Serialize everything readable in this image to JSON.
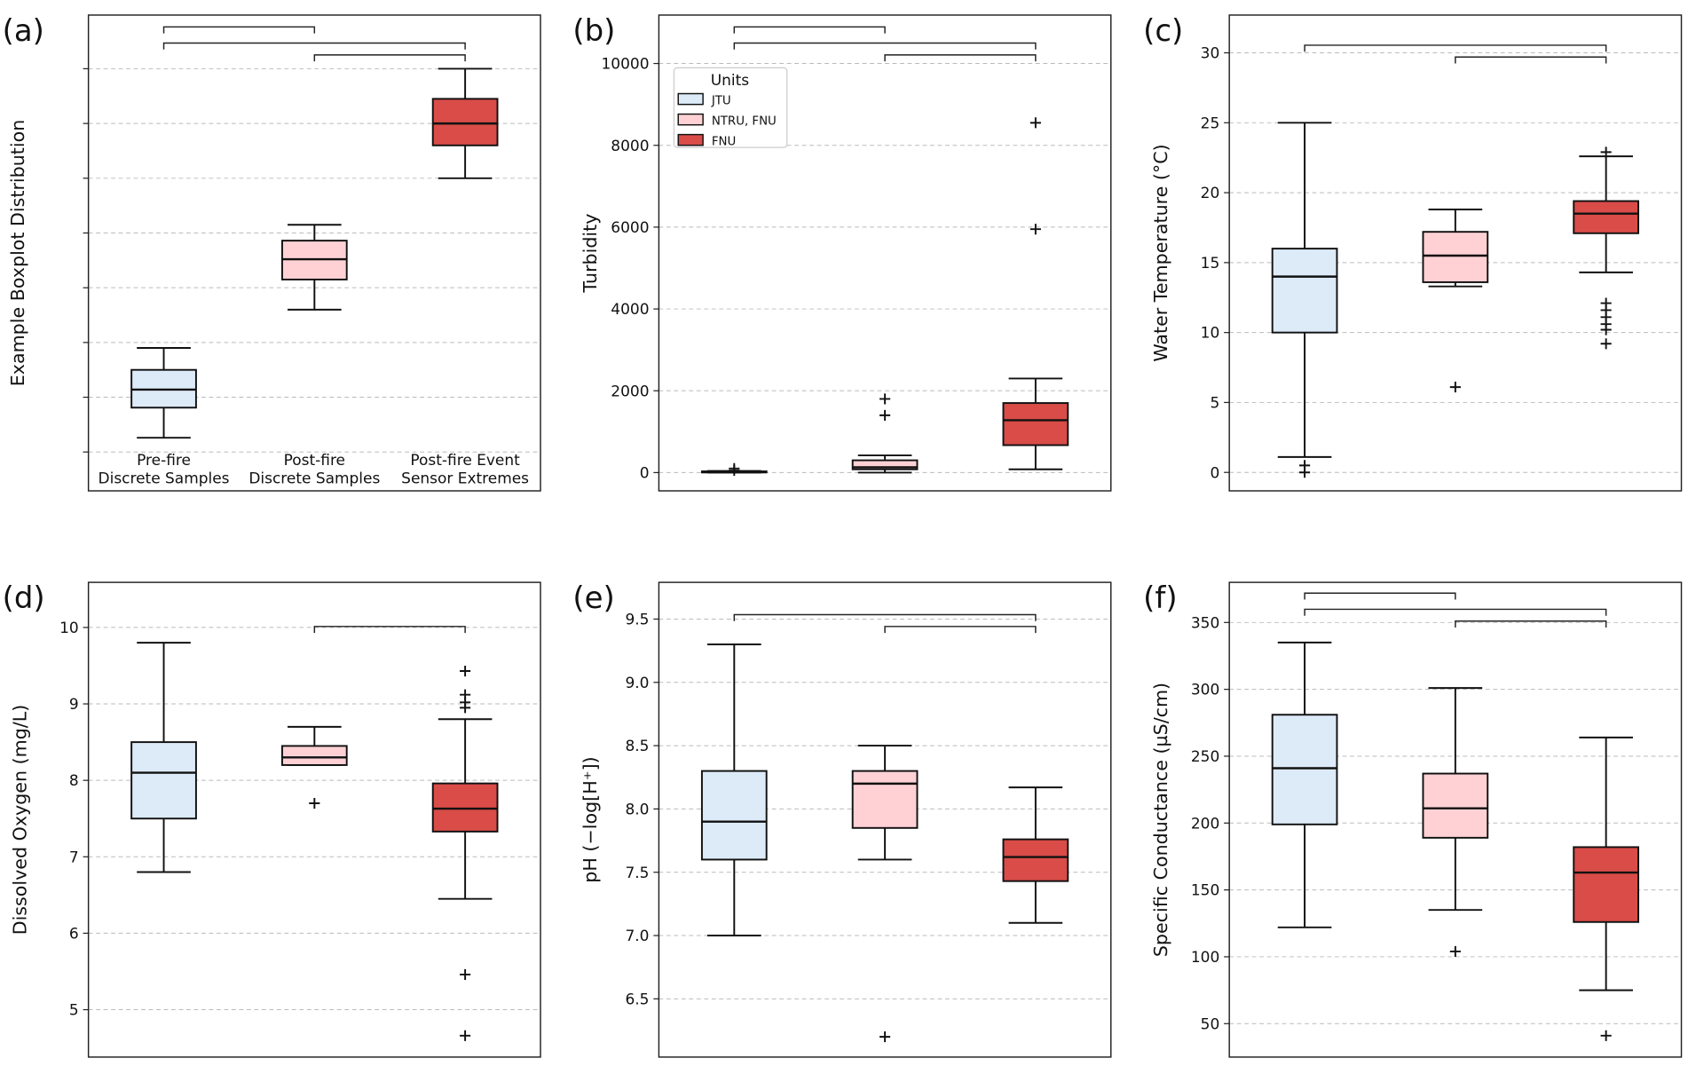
{
  "colors": {
    "pre": "#ddeaf8",
    "post": "#ffd1d5",
    "event": "#d94c48",
    "grid": "#bbbbbb"
  },
  "legend": {
    "title": "Units",
    "entries": [
      "JTU",
      "NTRU, FNU",
      "FNU"
    ]
  },
  "chart_data": [
    {
      "panel": "(a)",
      "type": "box",
      "ylabel": "Example Boxplot Distribution",
      "ylim": [
        -0.71,
        7.98
      ],
      "yticks": [
        0,
        1,
        2,
        3,
        4,
        5,
        6,
        7
      ],
      "show_tick_labels": false,
      "categories": [
        "Pre-fire\nDiscrete Samples",
        "Post-fire\nDiscrete Samples",
        "Post-fire Event\nSensor Extremes"
      ],
      "boxes": [
        {
          "whislo": 0.26,
          "q1": 0.81,
          "med": 1.14,
          "q3": 1.5,
          "whishi": 1.9,
          "fliers": []
        },
        {
          "whislo": 2.6,
          "q1": 3.15,
          "med": 3.52,
          "q3": 3.86,
          "whishi": 4.15,
          "fliers": []
        },
        {
          "whislo": 5.0,
          "q1": 5.6,
          "med": 6.0,
          "q3": 6.45,
          "whishi": 7.0,
          "fliers": []
        }
      ],
      "brackets": [
        [
          0,
          1,
          0
        ],
        [
          0,
          2,
          1
        ],
        [
          1,
          2,
          2
        ]
      ]
    },
    {
      "panel": "(b)",
      "type": "box",
      "ylabel": "Turbidity",
      "ylim": [
        -447,
        11184
      ],
      "yticks": [
        0,
        2000,
        4000,
        6000,
        8000,
        10000
      ],
      "show_tick_labels": true,
      "legend": true,
      "boxes": [
        {
          "whislo": 0,
          "q1": 5,
          "med": 12,
          "q3": 30,
          "whishi": 40,
          "fliers": [
            100,
            50
          ]
        },
        {
          "whislo": 0,
          "q1": 80,
          "med": 130,
          "q3": 300,
          "whishi": 420,
          "fliers": [
            1400,
            1800
          ]
        },
        {
          "whislo": 80,
          "q1": 670,
          "med": 1280,
          "q3": 1700,
          "whishi": 2300,
          "fliers": [
            5950,
            8550
          ]
        }
      ],
      "brackets": [
        [
          0,
          1,
          0
        ],
        [
          0,
          2,
          1
        ],
        [
          1,
          2,
          2
        ]
      ]
    },
    {
      "panel": "(c)",
      "type": "box",
      "ylabel": "Water Temperature (°C)",
      "ylim": [
        -1.32,
        32.7
      ],
      "yticks": [
        0,
        5,
        10,
        15,
        20,
        25,
        30
      ],
      "show_tick_labels": true,
      "boxes": [
        {
          "whislo": 1.1,
          "q1": 10,
          "med": 14,
          "q3": 16,
          "whishi": 25,
          "fliers": [
            0,
            0.5
          ]
        },
        {
          "whislo": 13.3,
          "q1": 13.6,
          "med": 15.5,
          "q3": 17.2,
          "whishi": 18.8,
          "fliers": [
            6.1
          ]
        },
        {
          "whislo": 14.3,
          "q1": 17.1,
          "med": 18.5,
          "q3": 19.4,
          "whishi": 22.6,
          "fliers": [
            22.9,
            12.1,
            11.6,
            11.1,
            10.6,
            10.2,
            9.2
          ]
        }
      ],
      "brackets": [
        [
          0,
          2,
          1
        ],
        [
          1,
          2,
          2
        ]
      ]
    },
    {
      "panel": "(d)",
      "type": "box",
      "ylabel": "Dissolved Oxygen (mg/L)",
      "ylim": [
        4.38,
        10.59
      ],
      "yticks": [
        5,
        6,
        7,
        8,
        9,
        10
      ],
      "show_tick_labels": true,
      "boxes": [
        {
          "whislo": 6.8,
          "q1": 7.5,
          "med": 8.1,
          "q3": 8.5,
          "whishi": 9.8,
          "fliers": []
        },
        {
          "whislo": 8.2,
          "q1": 8.2,
          "med": 8.3,
          "q3": 8.45,
          "whishi": 8.7,
          "fliers": [
            7.7
          ]
        },
        {
          "whislo": 6.45,
          "q1": 7.33,
          "med": 7.63,
          "q3": 7.96,
          "whishi": 8.8,
          "fliers": [
            9.43,
            9.12,
            9.02,
            8.95,
            5.46,
            4.66
          ]
        }
      ],
      "brackets": [
        [
          1,
          2,
          1
        ]
      ]
    },
    {
      "panel": "(e)",
      "type": "box",
      "ylabel": "pH (−log[H⁺])",
      "ylim": [
        6.04,
        9.79
      ],
      "yticks": [
        6.5,
        7.0,
        7.5,
        8.0,
        8.5,
        9.0,
        9.5
      ],
      "tick_decimals": 1,
      "show_tick_labels": true,
      "boxes": [
        {
          "whislo": 7.0,
          "q1": 7.6,
          "med": 7.9,
          "q3": 8.3,
          "whishi": 9.3,
          "fliers": []
        },
        {
          "whislo": 7.6,
          "q1": 7.85,
          "med": 8.2,
          "q3": 8.3,
          "whishi": 8.5,
          "fliers": [
            6.2
          ]
        },
        {
          "whislo": 7.1,
          "q1": 7.43,
          "med": 7.62,
          "q3": 7.76,
          "whishi": 8.17,
          "fliers": []
        }
      ],
      "brackets": [
        [
          0,
          2,
          1
        ],
        [
          1,
          2,
          2
        ]
      ]
    },
    {
      "panel": "(f)",
      "type": "box",
      "ylabel": "Specific Conductance (µS/cm)",
      "ylim": [
        25,
        380
      ],
      "yticks": [
        50,
        100,
        150,
        200,
        250,
        300,
        350
      ],
      "show_tick_labels": true,
      "boxes": [
        {
          "whislo": 122,
          "q1": 199,
          "med": 241,
          "q3": 281,
          "whishi": 335,
          "fliers": []
        },
        {
          "whislo": 135,
          "q1": 189,
          "med": 211,
          "q3": 237,
          "whishi": 301,
          "fliers": [
            104
          ]
        },
        {
          "whislo": 75,
          "q1": 126,
          "med": 163,
          "q3": 182,
          "whishi": 264,
          "fliers": [
            41
          ]
        }
      ],
      "brackets": [
        [
          0,
          1,
          0
        ],
        [
          0,
          2,
          1
        ],
        [
          1,
          2,
          2
        ]
      ]
    }
  ]
}
